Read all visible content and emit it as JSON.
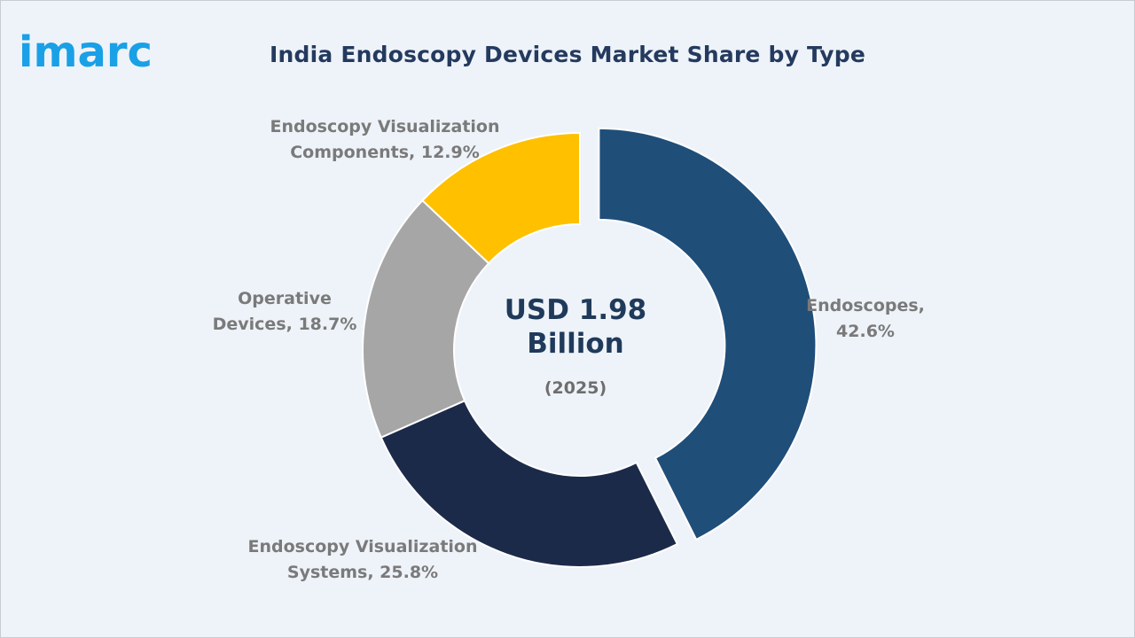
{
  "brand": {
    "logo_text": "imarc",
    "logo_color": "#1aa0e6"
  },
  "title": "India Endoscopy Devices Market Share by Type",
  "center": {
    "value": "USD 1.98\nBillion",
    "year": "(2025)"
  },
  "chart_data": {
    "type": "pie",
    "style": "donut",
    "title": "India Endoscopy Devices Market Share by Type",
    "unit": "%",
    "slices": [
      {
        "name": "Endoscopes",
        "value": 42.6,
        "label": "Endoscopes,\n42.6%",
        "color": "#1f4e79",
        "exploded": true
      },
      {
        "name": "Endoscopy Visualization Systems",
        "value": 25.8,
        "label": "Endoscopy Visualization\nSystems, 25.8%",
        "color": "#1c2a4a",
        "exploded": false
      },
      {
        "name": "Operative Devices",
        "value": 18.7,
        "label": "Operative\nDevices, 18.7%",
        "color": "#a6a6a6",
        "exploded": false
      },
      {
        "name": "Endoscopy Visualization Components",
        "value": 12.9,
        "label": "Endoscopy Visualization\nComponents, 12.9%",
        "color": "#ffc000",
        "exploded": false
      }
    ]
  }
}
